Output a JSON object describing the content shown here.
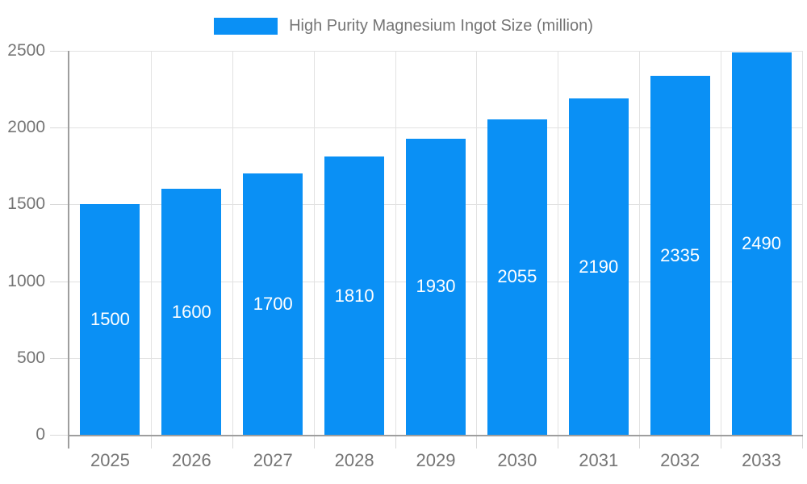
{
  "legend": {
    "label": "High Purity Magnesium Ingot Size (million)"
  },
  "chart_data": {
    "type": "bar",
    "title": "High Purity Magnesium Ingot Size (million)",
    "series_name": "High Purity Magnesium Ingot Size (million)",
    "categories": [
      "2025",
      "2026",
      "2027",
      "2028",
      "2029",
      "2030",
      "2031",
      "2032",
      "2033"
    ],
    "values": [
      1500,
      1600,
      1700,
      1810,
      1930,
      2055,
      2190,
      2335,
      2490
    ],
    "data_labels": [
      1500,
      1600,
      1700,
      1810,
      1930,
      2055,
      2190,
      2335,
      2490
    ],
    "xlabel": "",
    "ylabel": "",
    "ylim": [
      0,
      2500
    ],
    "yticks": [
      0,
      500,
      1000,
      1500,
      2000,
      2500
    ],
    "grid": true,
    "legend_position": "top-center",
    "colors": {
      "bar": "#0a90f5",
      "value_label": "#ffffff",
      "axis_text": "#757575",
      "gridline": "#e2e2e2",
      "axis_line": "#9e9e9e"
    }
  }
}
